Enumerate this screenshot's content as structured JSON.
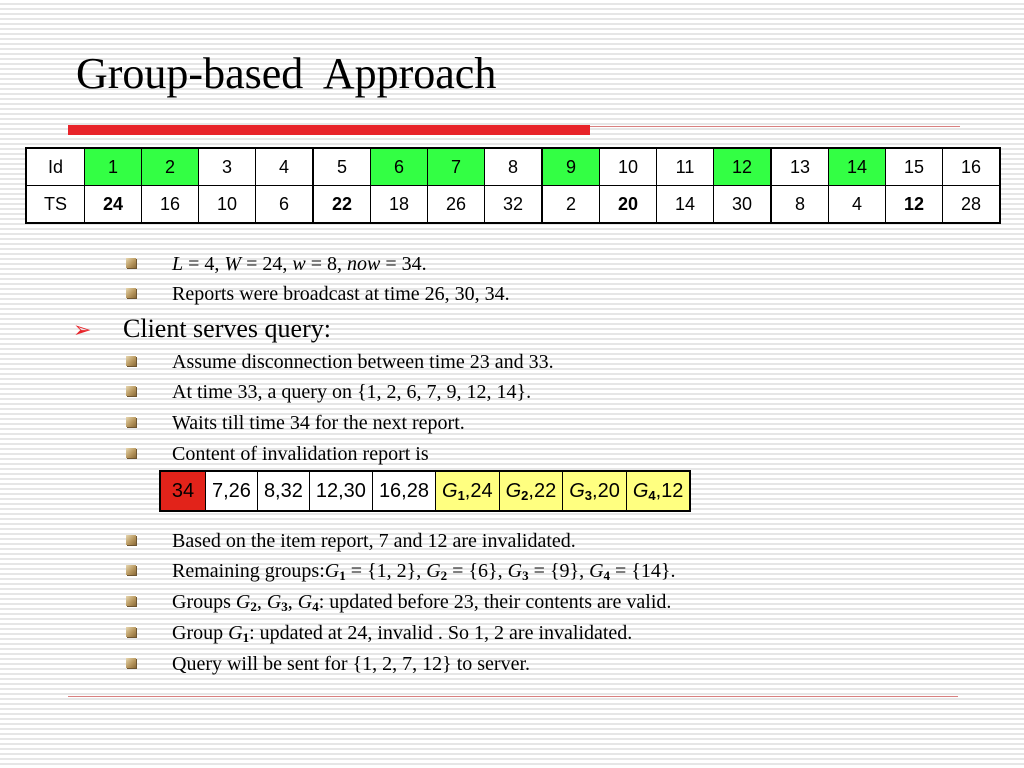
{
  "title": "Group-based  Approach",
  "ts_table": {
    "id_label": "Id",
    "ts_label": "TS",
    "ids": [
      "1",
      "2",
      "3",
      "4",
      "5",
      "6",
      "7",
      "8",
      "9",
      "10",
      "11",
      "12",
      "13",
      "14",
      "15",
      "16"
    ],
    "ts": [
      "24",
      "16",
      "10",
      "6",
      "22",
      "18",
      "26",
      "32",
      "2",
      "20",
      "14",
      "30",
      "8",
      "4",
      "12",
      "28"
    ],
    "highlight_color": "#33ff44"
  },
  "bullets": {
    "params": {
      "L": "L",
      "L_val": " = 4, ",
      "W": "W",
      "W_val": " = 24, ",
      "w": "w",
      "w_val": " = 8, ",
      "now": "now",
      "now_val": " = 34."
    },
    "broadcast": "Reports were broadcast at time 26, 30, 34.",
    "client_heading": "Client serves query:",
    "disconnect": "Assume disconnection between time 23 and 33.",
    "query": "At time 33, a query on {1, 2, 6, 7, 9, 12, 14}.",
    "wait": "Waits till time 34 for the next report.",
    "content": "Content of invalidation report is",
    "based": "Based on the item report, 7 and 12 are invalidated.",
    "remaining_prefix": "Remaining groups:",
    "remaining_g1": "G",
    "remaining_g1_sub": "1",
    "remaining_g1_val": " = {1, 2}, ",
    "remaining_g2": "G",
    "remaining_g2_sub": "2",
    "remaining_g2_val": " = {6}, ",
    "remaining_g3": "G",
    "remaining_g3_sub": "3",
    "remaining_g3_val": " = {9}, ",
    "remaining_g4": "G",
    "remaining_g4_sub": "4",
    "remaining_g4_val": " = {14}.",
    "groups_prefix": "Groups ",
    "groups_g2": "G",
    "groups_g2_sub": "2",
    "groups_sep1": ", ",
    "groups_g3": "G",
    "groups_g3_sub": "3",
    "groups_sep2": ", ",
    "groups_g4": "G",
    "groups_g4_sub": "4",
    "groups_suffix": ": updated before 23, their contents are valid.",
    "group1_prefix": "Group ",
    "group1_g": "G",
    "group1_sub": "1",
    "group1_suffix": ": updated at 24, invalid . So 1, 2 are invalidated.",
    "query_sent": "Query will be sent for {1, 2, 7, 12} to server."
  },
  "report": {
    "time": "34",
    "items": [
      "7,26",
      "8,32",
      "12,30",
      "16,28"
    ],
    "groups": [
      {
        "g": "G",
        "sub": "1",
        "val": ",24"
      },
      {
        "g": "G",
        "sub": "2",
        "val": ",22"
      },
      {
        "g": "G",
        "sub": "3",
        "val": ",20"
      },
      {
        "g": "G",
        "sub": "4",
        "val": ",12"
      }
    ],
    "time_color": "#e2231a",
    "group_color": "#ffff80"
  }
}
